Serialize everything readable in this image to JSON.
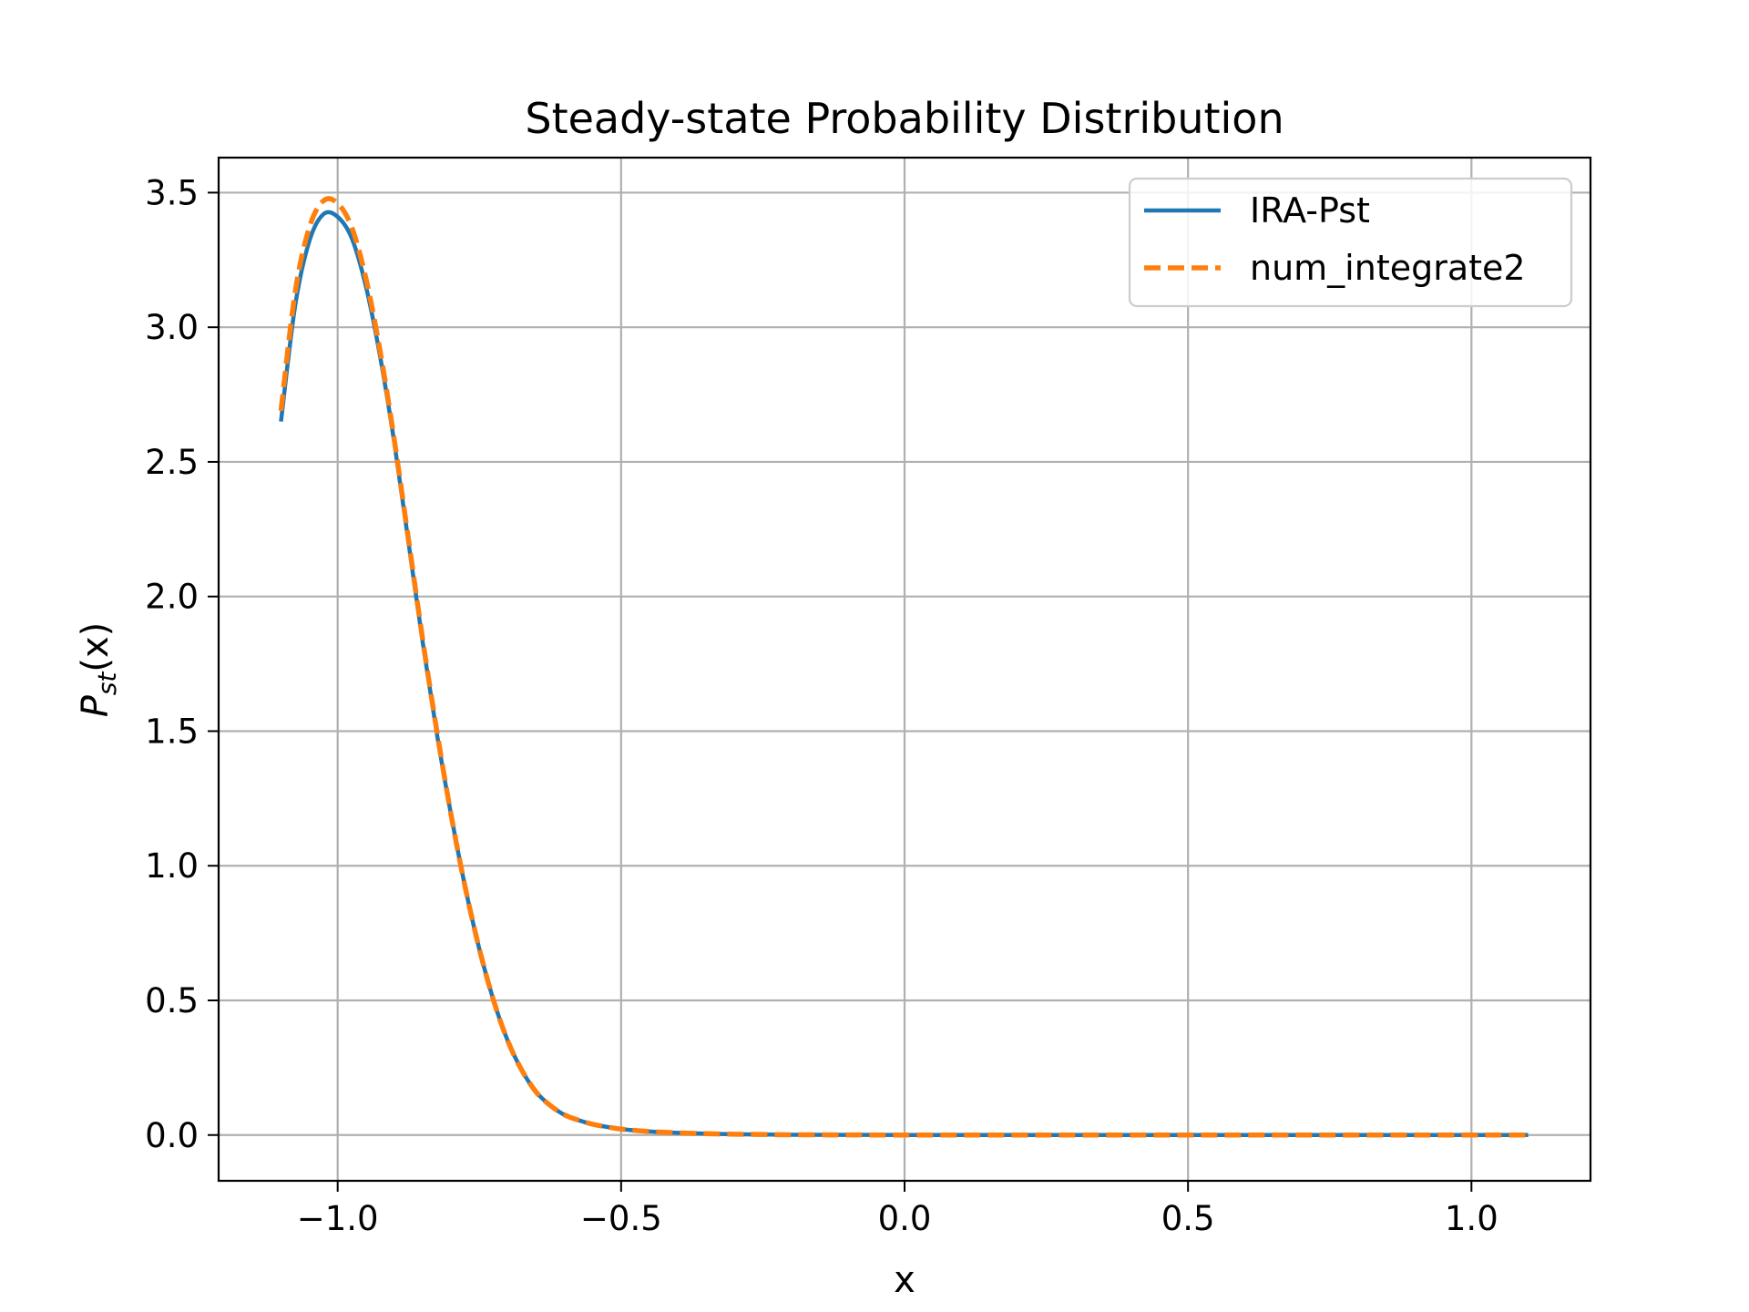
{
  "chart_data": {
    "type": "line",
    "title": "Steady-state Probability Distribution",
    "xlabel": "x",
    "ylabel_main": "P",
    "ylabel_sub": "st",
    "ylabel_arg": "(x)",
    "xlim": [
      -1.21,
      1.21
    ],
    "ylim": [
      -0.17,
      3.63
    ],
    "xticks": [
      -1.0,
      -0.5,
      0.0,
      0.5,
      1.0
    ],
    "xtick_labels": [
      "−1.0",
      "−0.5",
      "0.0",
      "0.5",
      "1.0"
    ],
    "yticks": [
      0.0,
      0.5,
      1.0,
      1.5,
      2.0,
      2.5,
      3.0,
      3.5
    ],
    "ytick_labels": [
      "0.0",
      "0.5",
      "1.0",
      "1.5",
      "2.0",
      "2.5",
      "3.0",
      "3.5"
    ],
    "grid": true,
    "legend_position": "top-right",
    "series": [
      {
        "name": "IRA-Pst",
        "color": "#1f77b4",
        "style": "solid",
        "x": [
          -1.1,
          -1.075,
          -1.05,
          -1.025,
          -1.0,
          -0.975,
          -0.95,
          -0.925,
          -0.9,
          -0.875,
          -0.85,
          -0.825,
          -0.8,
          -0.775,
          -0.75,
          -0.725,
          -0.7,
          -0.675,
          -0.65,
          -0.625,
          -0.6,
          -0.575,
          -0.55,
          -0.525,
          -0.5,
          -0.45,
          -0.4,
          -0.35,
          -0.3,
          -0.25,
          -0.2,
          -0.1,
          0.0,
          0.25,
          0.5,
          0.75,
          1.0,
          1.1
        ],
        "y": [
          2.65,
          3.08,
          3.32,
          3.42,
          3.41,
          3.33,
          3.15,
          2.89,
          2.57,
          2.2,
          1.83,
          1.49,
          1.19,
          0.92,
          0.69,
          0.5,
          0.35,
          0.24,
          0.16,
          0.11,
          0.075,
          0.055,
          0.04,
          0.03,
          0.022,
          0.013,
          0.008,
          0.005,
          0.003,
          0.002,
          0.001,
          0.0005,
          0.0,
          0.0,
          0.0,
          0.0,
          0.0,
          0.0
        ]
      },
      {
        "name": "num_integrate2",
        "color": "#ff7f0e",
        "style": "dashed",
        "x": [
          -1.1,
          -1.075,
          -1.05,
          -1.025,
          -1.0,
          -0.975,
          -0.95,
          -0.925,
          -0.9,
          -0.875,
          -0.85,
          -0.825,
          -0.8,
          -0.775,
          -0.75,
          -0.725,
          -0.7,
          -0.675,
          -0.65,
          -0.625,
          -0.6,
          -0.575,
          -0.55,
          -0.525,
          -0.5,
          -0.45,
          -0.4,
          -0.35,
          -0.3,
          -0.25,
          -0.2,
          -0.1,
          0.0,
          0.25,
          0.5,
          0.75,
          1.0,
          1.1
        ],
        "y": [
          2.69,
          3.13,
          3.37,
          3.47,
          3.46,
          3.37,
          3.18,
          2.91,
          2.58,
          2.21,
          1.84,
          1.5,
          1.19,
          0.92,
          0.69,
          0.5,
          0.35,
          0.24,
          0.16,
          0.11,
          0.075,
          0.055,
          0.04,
          0.03,
          0.022,
          0.013,
          0.008,
          0.005,
          0.003,
          0.002,
          0.001,
          0.0005,
          0.0,
          0.0,
          0.0,
          0.0,
          0.0,
          0.0
        ]
      }
    ]
  }
}
